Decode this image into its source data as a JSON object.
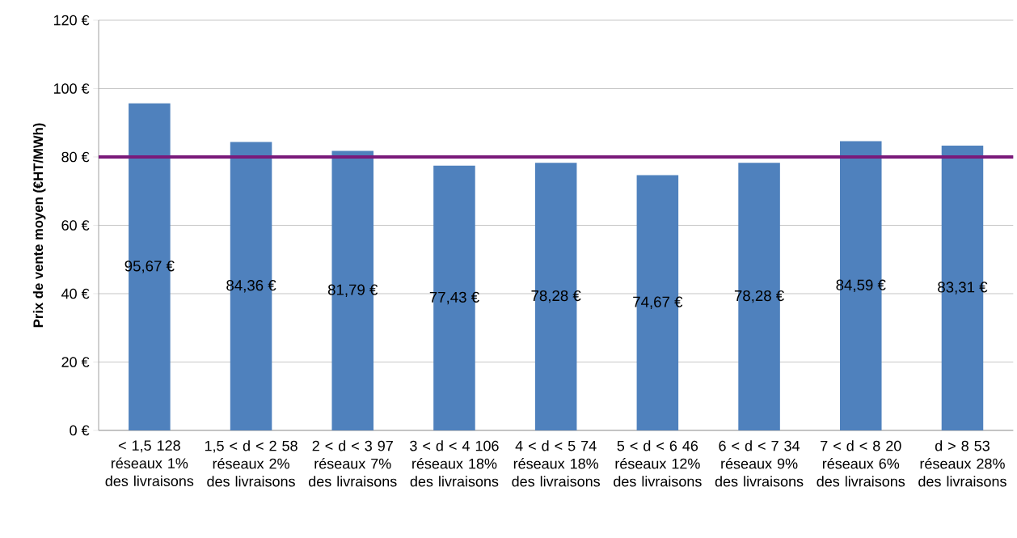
{
  "chart_data": {
    "type": "bar",
    "ylabel": "Prix de vente moyen (€HT/MWh)",
    "categories": [
      "< 1,5 128 réseaux 1% des livraisons",
      "1,5 < d < 2 58 réseaux 2% des livraisons",
      "2 < d < 3 97 réseaux 7% des livraisons",
      "3 < d < 4 106 réseaux 18% des livraisons",
      "4 < d < 5 74 réseaux 18% des livraisons",
      "5 < d < 6 46 réseaux 12% des livraisons",
      "6 < d < 7 34 réseaux 9% des livraisons",
      "7 < d < 8 20 réseaux 6% des livraisons",
      "d > 8 53 réseaux 28% des livraisons"
    ],
    "values": [
      95.67,
      84.36,
      81.79,
      77.43,
      78.28,
      74.67,
      78.28,
      84.59,
      83.31
    ],
    "value_labels": [
      "95,67 €",
      "84,36 €",
      "81,79 €",
      "77,43 €",
      "78,28 €",
      "74,67 €",
      "78,28 €",
      "84,59 €",
      "83,31 €"
    ],
    "color": "#4f81bd",
    "ylim": [
      0,
      120
    ],
    "yticks": [
      {
        "value": 0,
        "label": "0 €"
      },
      {
        "value": 20,
        "label": "20 €"
      },
      {
        "value": 40,
        "label": "40 €"
      },
      {
        "value": 60,
        "label": "60 €"
      },
      {
        "value": 80,
        "label": "80 €"
      },
      {
        "value": 100,
        "label": "100 €"
      },
      {
        "value": 120,
        "label": "120 €"
      }
    ],
    "grid": "y",
    "ref_lines": [
      {
        "axis": "y",
        "value": 80,
        "color": "#7a1a7a"
      }
    ]
  }
}
